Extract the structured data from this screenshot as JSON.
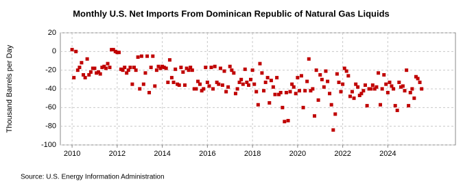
{
  "chart_data": {
    "type": "scatter",
    "title": "Monthly U.S. Net Imports From Dominican Republic of Natural Gas Liquids",
    "ylabel": "Thousand Barrels per Day",
    "source": "Source: U.S. Energy Information Administration",
    "xlim": [
      2009.48,
      2027
    ],
    "xticks": [
      2010,
      2012,
      2014,
      2016,
      2018,
      2020,
      2022,
      2024
    ],
    "ylim": [
      -100,
      20
    ],
    "yticks": [
      20,
      0,
      -20,
      -40,
      -60,
      -80,
      -100
    ],
    "grid": true,
    "color": "#c00000",
    "x": [
      2010.0,
      2010.08,
      2010.17,
      2010.25,
      2010.33,
      2010.42,
      2010.5,
      2010.58,
      2010.67,
      2010.75,
      2010.83,
      2010.92,
      2011.0,
      2011.08,
      2011.17,
      2011.25,
      2011.33,
      2011.42,
      2011.5,
      2011.58,
      2011.67,
      2011.75,
      2011.83,
      2011.92,
      2012.0,
      2012.08,
      2012.17,
      2012.25,
      2012.33,
      2012.42,
      2012.5,
      2012.58,
      2012.67,
      2012.75,
      2012.83,
      2012.92,
      2013.0,
      2013.08,
      2013.17,
      2013.25,
      2013.33,
      2013.42,
      2013.5,
      2013.58,
      2013.67,
      2013.75,
      2013.83,
      2013.92,
      2014.0,
      2014.08,
      2014.17,
      2014.25,
      2014.33,
      2014.42,
      2014.5,
      2014.58,
      2014.67,
      2014.75,
      2014.83,
      2014.92,
      2015.0,
      2015.08,
      2015.17,
      2015.25,
      2015.33,
      2015.42,
      2015.5,
      2015.58,
      2015.67,
      2015.75,
      2015.83,
      2015.92,
      2016.0,
      2016.08,
      2016.17,
      2016.25,
      2016.33,
      2016.42,
      2016.5,
      2016.58,
      2016.67,
      2016.75,
      2016.83,
      2016.92,
      2017.0,
      2017.08,
      2017.17,
      2017.25,
      2017.33,
      2017.42,
      2017.5,
      2017.58,
      2017.67,
      2017.75,
      2017.83,
      2017.92,
      2018.0,
      2018.08,
      2018.17,
      2018.25,
      2018.33,
      2018.42,
      2018.5,
      2018.58,
      2018.67,
      2018.75,
      2018.83,
      2018.92,
      2019.0,
      2019.08,
      2019.17,
      2019.25,
      2019.33,
      2019.42,
      2019.5,
      2019.58,
      2019.67,
      2019.75,
      2019.83,
      2019.92,
      2020.0,
      2020.08,
      2020.17,
      2020.25,
      2020.33,
      2020.42,
      2020.5,
      2020.58,
      2020.67,
      2020.75,
      2020.83,
      2020.92,
      2021.0,
      2021.08,
      2021.17,
      2021.25,
      2021.33,
      2021.42,
      2021.5,
      2021.58,
      2021.67,
      2021.75,
      2021.83,
      2021.92,
      2022.0,
      2022.08,
      2022.17,
      2022.25,
      2022.33,
      2022.42,
      2022.5,
      2022.58,
      2022.67,
      2022.75,
      2022.83,
      2022.92,
      2023.0,
      2023.08,
      2023.17,
      2023.25,
      2023.33,
      2023.42,
      2023.5,
      2023.58,
      2023.67,
      2023.75,
      2023.83,
      2023.92,
      2024.0,
      2024.08,
      2024.17,
      2024.25,
      2024.33,
      2024.42,
      2024.5,
      2024.58,
      2024.67,
      2024.75,
      2024.83,
      2024.92,
      2025.0,
      2025.08,
      2025.17,
      2025.25,
      2025.33,
      2025.42,
      2025.5
    ],
    "values": [
      2,
      -28,
      0,
      -20,
      -17,
      -12,
      -25,
      -28,
      -8,
      -25,
      -22,
      -18,
      -18,
      -23,
      -22,
      -24,
      -17,
      -16,
      -18,
      -13,
      -17,
      2,
      2,
      0,
      -1,
      -1,
      -19,
      -20,
      -17,
      -23,
      -20,
      -17,
      -35,
      -17,
      -20,
      -6,
      -40,
      -5,
      -35,
      -23,
      -5,
      -44,
      -17,
      -5,
      -37,
      -20,
      -16,
      -18,
      -16,
      -17,
      -18,
      -33,
      -9,
      -28,
      -33,
      -19,
      -35,
      -36,
      -17,
      -22,
      -36,
      -18,
      -20,
      -17,
      -20,
      -40,
      -40,
      -32,
      -35,
      -42,
      -40,
      -17,
      -33,
      -37,
      -17,
      -40,
      -16,
      -33,
      -35,
      -18,
      -36,
      -21,
      -43,
      -38,
      -16,
      -20,
      -23,
      -45,
      -40,
      -33,
      -30,
      -35,
      -19,
      -33,
      -36,
      -30,
      -20,
      -35,
      -43,
      -57,
      -13,
      -23,
      -42,
      -33,
      -28,
      -55,
      -31,
      -38,
      -46,
      -28,
      -46,
      -44,
      -60,
      -75,
      -44,
      -74,
      -43,
      -35,
      -38,
      -45,
      -28,
      -42,
      -26,
      -60,
      -42,
      -32,
      -8,
      -42,
      -40,
      -69,
      -20,
      -52,
      -25,
      -30,
      -38,
      -21,
      -32,
      -45,
      -57,
      -84,
      -67,
      -24,
      -33,
      -43,
      -35,
      -18,
      -21,
      -26,
      -48,
      -43,
      -50,
      -35,
      -38,
      -47,
      -45,
      -42,
      -36,
      -58,
      -40,
      -40,
      -36,
      -40,
      -38,
      -23,
      -57,
      -40,
      -25,
      -35,
      -44,
      -33,
      -37,
      -40,
      -58,
      -63,
      -33,
      -38,
      -37,
      -42,
      -20,
      -58,
      -44,
      -40,
      -50,
      -27,
      -29,
      -33,
      -40
    ]
  }
}
